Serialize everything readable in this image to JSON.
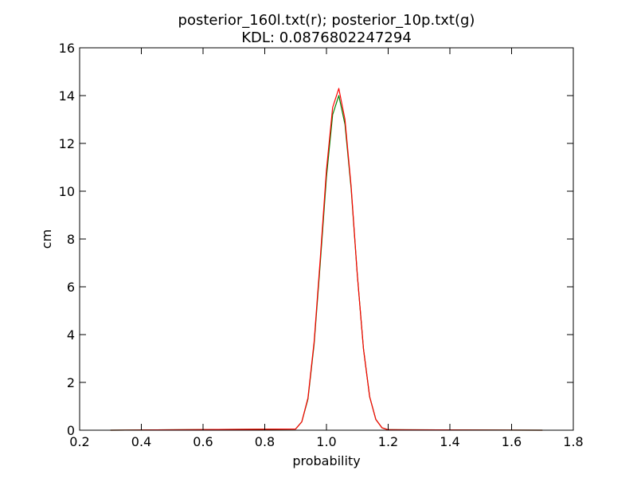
{
  "chart_data": {
    "type": "line",
    "title": "posterior_160l.txt(r); posterior_10p.txt(g)",
    "subtitle": "KDL: 0.0876802247294",
    "xlabel": "probability",
    "ylabel": "cm",
    "xlim": [
      0.2,
      1.8
    ],
    "ylim": [
      0,
      16
    ],
    "x_ticks": [
      "0.2",
      "0.4",
      "0.6",
      "0.8",
      "1.0",
      "1.2",
      "1.4",
      "1.6",
      "1.8"
    ],
    "y_ticks": [
      "0",
      "2",
      "4",
      "6",
      "8",
      "10",
      "12",
      "14",
      "16"
    ],
    "grid": false,
    "series": [
      {
        "color": "#008000",
        "x": [
          0.3,
          0.9,
          0.92,
          0.94,
          0.96,
          0.98,
          1.0,
          1.02,
          1.04,
          1.06,
          1.08,
          1.1,
          1.12,
          1.14,
          1.16,
          1.18,
          1.2,
          1.7
        ],
        "y": [
          0.0,
          0.05,
          0.35,
          1.3,
          3.6,
          7.0,
          10.6,
          13.2,
          14.0,
          12.8,
          10.1,
          6.5,
          3.4,
          1.4,
          0.45,
          0.1,
          0.02,
          0.0
        ]
      },
      {
        "color": "#ff0000",
        "x": [
          0.3,
          0.9,
          0.92,
          0.94,
          0.96,
          0.98,
          1.0,
          1.02,
          1.04,
          1.06,
          1.08,
          1.1,
          1.12,
          1.14,
          1.16,
          1.18,
          1.2,
          1.7
        ],
        "y": [
          0.0,
          0.05,
          0.35,
          1.35,
          3.7,
          7.2,
          10.9,
          13.5,
          14.3,
          13.0,
          10.2,
          6.5,
          3.4,
          1.4,
          0.45,
          0.1,
          0.02,
          0.0
        ]
      }
    ]
  }
}
